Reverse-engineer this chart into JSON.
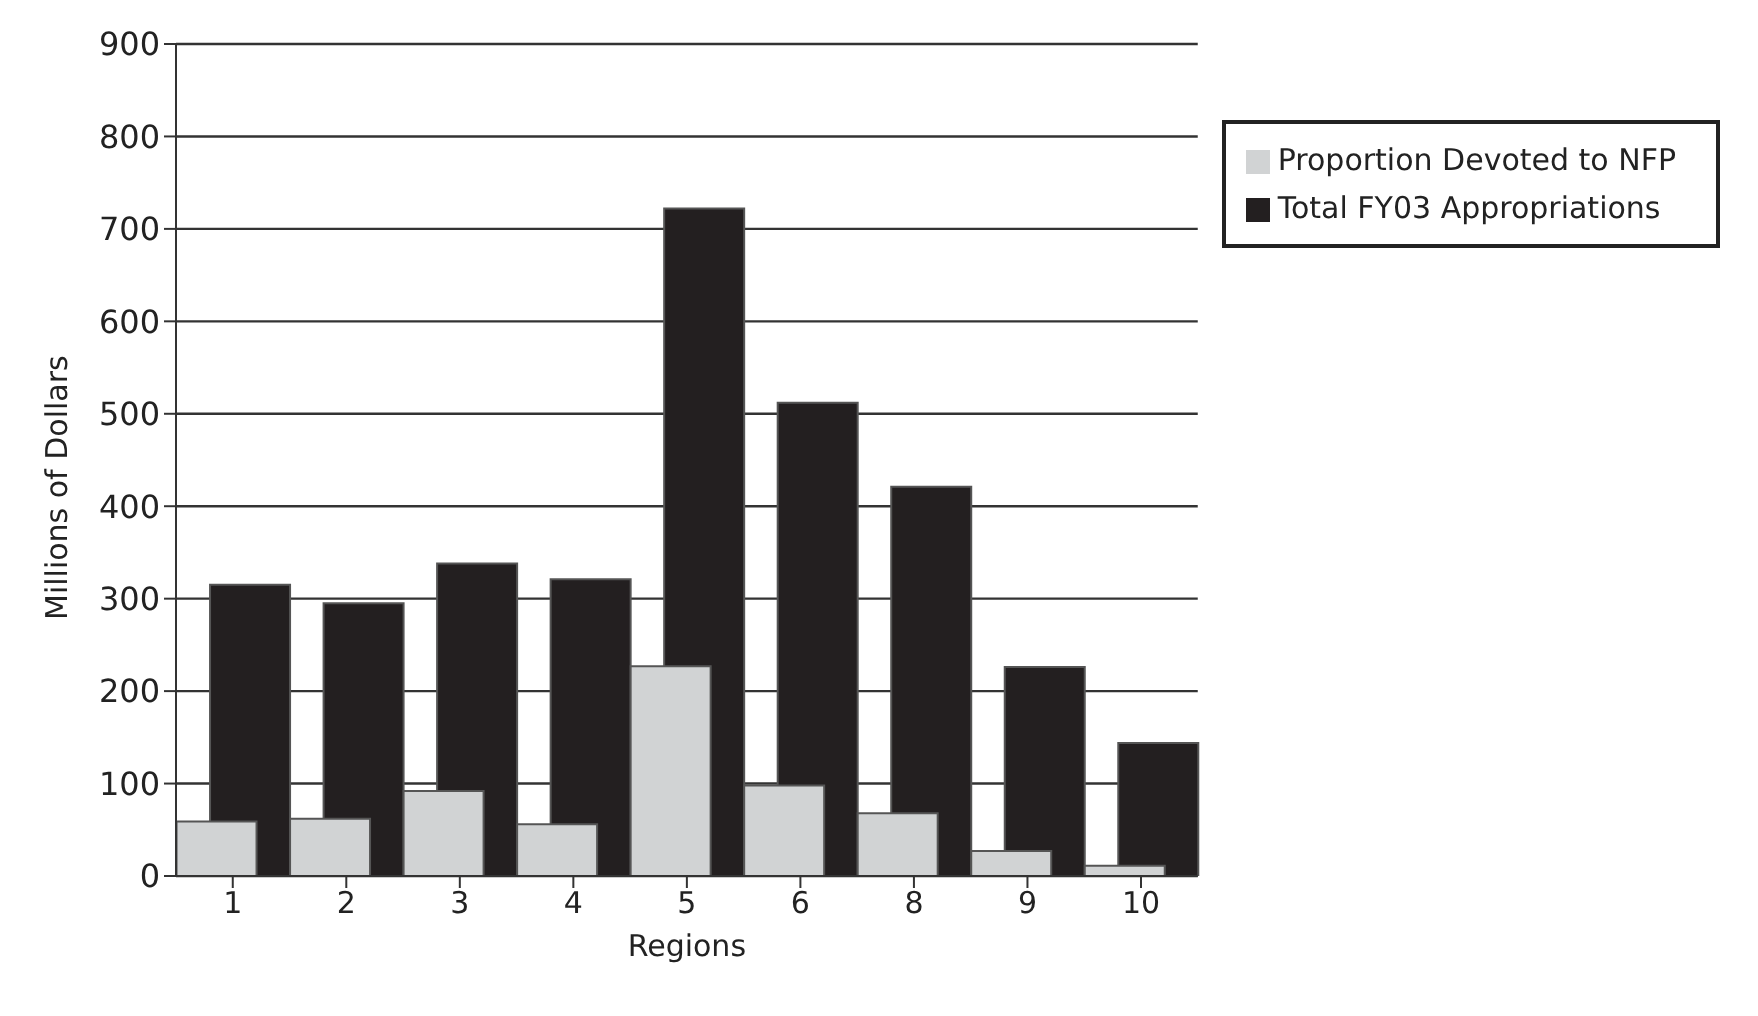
{
  "chart_data": {
    "type": "bar",
    "xlabel": "Regions",
    "ylabel": "Millions of Dollars",
    "categories": [
      "1",
      "2",
      "3",
      "4",
      "5",
      "6",
      "8",
      "9",
      "10"
    ],
    "series": [
      {
        "name": "Total FY03 Appropriations",
        "color": "#231f20",
        "values": [
          315,
          295,
          338,
          321,
          722,
          512,
          421,
          226,
          144
        ]
      },
      {
        "name": "Proportion Devoted to NFP",
        "color": "#d1d3d4",
        "values": [
          59,
          62,
          92,
          56,
          227,
          98,
          68,
          27,
          11
        ]
      }
    ],
    "ylim": [
      0,
      900
    ],
    "yticks": [
      0,
      100,
      200,
      300,
      400,
      500,
      600,
      700,
      800,
      900
    ],
    "grid": "y",
    "legend": "top right"
  }
}
